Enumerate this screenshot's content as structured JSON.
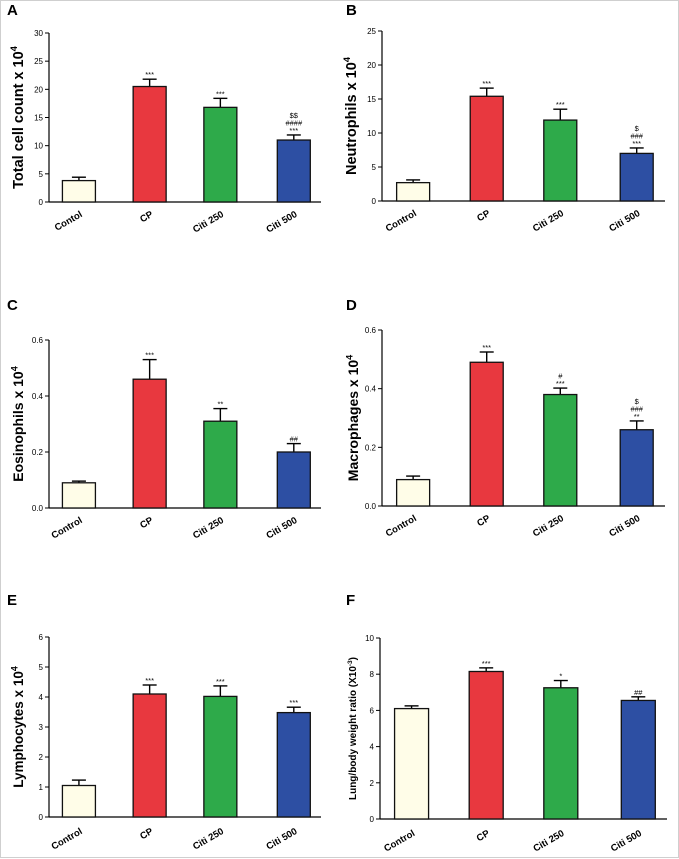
{
  "colors": {
    "Control": "#fffde8",
    "CP": "#e8383f",
    "Citi 250": "#2eaa4a",
    "Citi 500": "#2d4fa3",
    "stroke": "#111111"
  },
  "chart_data": [
    {
      "panel": "A",
      "type": "bar",
      "ylabel": "Total cell count x 10",
      "ylabel_sup": "4",
      "categories": [
        "Contol",
        "CP",
        "Citi 250",
        "Citi 500"
      ],
      "values": [
        3.8,
        20.5,
        16.8,
        11.0
      ],
      "errors": [
        0.6,
        1.3,
        1.6,
        0.9
      ],
      "annotations": [
        [],
        [
          "***"
        ],
        [
          "***"
        ],
        [
          "***",
          "####",
          "$$"
        ]
      ],
      "ylim": [
        0,
        30
      ],
      "yticks": [
        "0",
        "5",
        "10",
        "15",
        "20",
        "25",
        "30"
      ]
    },
    {
      "panel": "B",
      "type": "bar",
      "ylabel": "Neutrophils x 10",
      "ylabel_sup": "4",
      "categories": [
        "Control",
        "CP",
        "Citi 250",
        "Citi 500"
      ],
      "values": [
        2.7,
        15.4,
        11.9,
        7.0
      ],
      "errors": [
        0.4,
        1.2,
        1.6,
        0.8
      ],
      "annotations": [
        [],
        [
          "***"
        ],
        [
          "***"
        ],
        [
          "***",
          "###",
          "$"
        ]
      ],
      "ylim": [
        0,
        25
      ],
      "yticks": [
        "0",
        "5",
        "10",
        "15",
        "20",
        "25"
      ]
    },
    {
      "panel": "C",
      "type": "bar",
      "ylabel": "Eosinophils x 10",
      "ylabel_sup": "4",
      "categories": [
        "Control",
        "CP",
        "Citi 250",
        "Citi 500"
      ],
      "values": [
        0.09,
        0.46,
        0.31,
        0.2
      ],
      "errors": [
        0.006,
        0.07,
        0.045,
        0.03
      ],
      "annotations": [
        [],
        [
          "***"
        ],
        [
          "**"
        ],
        [
          "##"
        ]
      ],
      "ylim": [
        0,
        0.6
      ],
      "yticks": [
        "0.0",
        "0.2",
        "0.4",
        "0.6"
      ]
    },
    {
      "panel": "D",
      "type": "bar",
      "ylabel": "Macrophages x 10",
      "ylabel_sup": "4",
      "categories": [
        "Control",
        "CP",
        "Citi 250",
        "Citi 500"
      ],
      "values": [
        0.09,
        0.49,
        0.38,
        0.26
      ],
      "errors": [
        0.012,
        0.035,
        0.022,
        0.03
      ],
      "annotations": [
        [],
        [
          "***"
        ],
        [
          "***",
          "#"
        ],
        [
          "**",
          "###",
          "$"
        ]
      ],
      "ylim": [
        0,
        0.6
      ],
      "yticks": [
        "0.0",
        "0.2",
        "0.4",
        "0.6"
      ]
    },
    {
      "panel": "E",
      "type": "bar",
      "ylabel": "Lymphocytes x 10",
      "ylabel_sup": "4",
      "categories": [
        "Control",
        "CP",
        "Citi 250",
        "Citi 500"
      ],
      "values": [
        1.05,
        4.1,
        4.02,
        3.48
      ],
      "errors": [
        0.18,
        0.3,
        0.35,
        0.18
      ],
      "annotations": [
        [],
        [
          "***"
        ],
        [
          "***"
        ],
        [
          "***"
        ]
      ],
      "ylim": [
        0,
        6
      ],
      "yticks": [
        "0",
        "1",
        "2",
        "3",
        "4",
        "5",
        "6"
      ]
    },
    {
      "panel": "F",
      "type": "bar",
      "ylabel": "Lung/body weight ratio (X10",
      "ylabel_sup": "-3",
      "ylabel_end": ")",
      "categories": [
        "Control",
        "CP",
        "Citi 250",
        "Citi 500"
      ],
      "values": [
        6.1,
        8.15,
        7.25,
        6.55
      ],
      "errors": [
        0.15,
        0.2,
        0.4,
        0.2
      ],
      "annotations": [
        [],
        [
          "***"
        ],
        [
          "*"
        ],
        [
          "##"
        ]
      ],
      "ylim": [
        0,
        10
      ],
      "yticks": [
        "0",
        "2",
        "4",
        "6",
        "8",
        "10"
      ]
    }
  ]
}
